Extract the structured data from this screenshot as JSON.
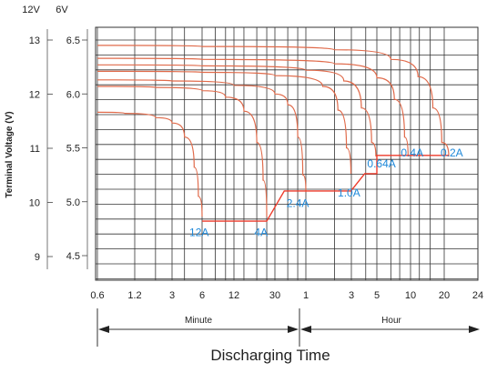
{
  "chart_data": {
    "type": "line",
    "title": "",
    "xlabel": "Discharging Time",
    "ylabel": "Terminal Voltage (V)",
    "x_ticks": [
      "0.6",
      "1.2",
      "3",
      "6",
      "12",
      "30",
      "1",
      "3",
      "5",
      "10",
      "20",
      "24"
    ],
    "x_ranges": [
      {
        "label": "Minute",
        "from": "0.6 min",
        "to": "1 h"
      },
      {
        "label": "Hour",
        "from": "1 h",
        "to": "24 h"
      }
    ],
    "y_axis_12v": {
      "header": "12V",
      "ticks": [
        "13",
        "12",
        "11",
        "10",
        "9"
      ],
      "ylim": [
        8.6,
        13.3
      ]
    },
    "y_axis_6v": {
      "header": "6V",
      "ticks": [
        "6.5",
        "6.0",
        "5.5",
        "5.0",
        "4.5"
      ],
      "ylim": [
        4.3,
        6.65
      ]
    },
    "grid": true,
    "series": [
      {
        "name": "12A",
        "points_min_v6": [
          [
            0.6,
            5.83
          ],
          [
            1.0,
            5.82
          ],
          [
            2.0,
            5.78
          ],
          [
            3.0,
            5.73
          ],
          [
            4.0,
            5.6
          ],
          [
            5.0,
            5.32
          ],
          [
            5.5,
            5.05
          ],
          [
            6.0,
            4.86
          ]
        ]
      },
      {
        "name": "4A",
        "points_min_v6": [
          [
            0.6,
            6.07
          ],
          [
            2.0,
            6.06
          ],
          [
            6.0,
            6.03
          ],
          [
            10.0,
            5.97
          ],
          [
            15.0,
            5.84
          ],
          [
            20.0,
            5.55
          ],
          [
            23.0,
            5.2
          ],
          [
            25.0,
            4.86
          ]
        ]
      },
      {
        "name": "2.4A",
        "points_min_v6": [
          [
            0.6,
            6.13
          ],
          [
            3.0,
            6.12
          ],
          [
            12.0,
            6.08
          ],
          [
            30.0,
            6.0
          ],
          [
            40.0,
            5.9
          ],
          [
            50.0,
            5.6
          ],
          [
            56.0,
            5.25
          ],
          [
            60.0,
            5.09
          ]
        ]
      },
      {
        "name": "1.0A",
        "points_min_v6": [
          [
            0.6,
            6.21
          ],
          [
            6.0,
            6.2
          ],
          [
            30.0,
            6.17
          ],
          [
            90.0,
            6.07
          ],
          [
            130.0,
            5.85
          ],
          [
            160.0,
            5.5
          ],
          [
            178.0,
            5.26
          ]
        ]
      },
      {
        "name": "0.64A",
        "points_min_v6": [
          [
            0.6,
            6.27
          ],
          [
            6.0,
            6.26
          ],
          [
            60.0,
            6.22
          ],
          [
            150.0,
            6.12
          ],
          [
            220.0,
            5.87
          ],
          [
            270.0,
            5.55
          ],
          [
            294.0,
            5.42
          ]
        ]
      },
      {
        "name": "0.4A",
        "points_min_v6": [
          [
            0.6,
            6.33
          ],
          [
            6.0,
            6.32
          ],
          [
            120.0,
            6.28
          ],
          [
            300.0,
            6.15
          ],
          [
            430.0,
            5.95
          ],
          [
            530.0,
            5.6
          ],
          [
            570.0,
            5.42
          ]
        ]
      },
      {
        "name": "0.2A",
        "points_min_v6": [
          [
            0.6,
            6.45
          ],
          [
            6.0,
            6.44
          ],
          [
            120.0,
            6.41
          ],
          [
            400.0,
            6.32
          ],
          [
            700.0,
            6.16
          ],
          [
            950.0,
            5.87
          ],
          [
            1140.0,
            5.55
          ],
          [
            1230.0,
            5.42
          ]
        ]
      }
    ],
    "end_voltage_steps_min_v6": [
      [
        6.0,
        4.82
      ],
      [
        25.0,
        4.82
      ],
      [
        37.0,
        5.1
      ],
      [
        60.0,
        5.1
      ],
      [
        100.0,
        5.1
      ],
      [
        178.0,
        5.1
      ],
      [
        235.0,
        5.26
      ],
      [
        300.0,
        5.26
      ],
      [
        300.0,
        5.43
      ],
      [
        600.0,
        5.43
      ],
      [
        1230.0,
        5.43
      ]
    ],
    "labels": [
      {
        "text": "12A",
        "x_min": 5.6,
        "v6": 4.68
      },
      {
        "text": "4A",
        "x_min": 22.0,
        "v6": 4.68
      },
      {
        "text": "2.4A",
        "x_min": 50.0,
        "v6": 4.95
      },
      {
        "text": "1.0A",
        "x_min": 170.0,
        "v6": 5.05
      },
      {
        "text": "0.64A",
        "x_min": 330.0,
        "v6": 5.32
      },
      {
        "text": "0.4A",
        "x_min": 620.0,
        "v6": 5.42
      },
      {
        "text": "0.2A",
        "x_min": 1250.0,
        "v6": 5.42
      }
    ],
    "colors": {
      "curve": "#e06a4a",
      "end_line": "#ee3b2b",
      "label": "#1e88d9",
      "grid": "#333333"
    }
  }
}
